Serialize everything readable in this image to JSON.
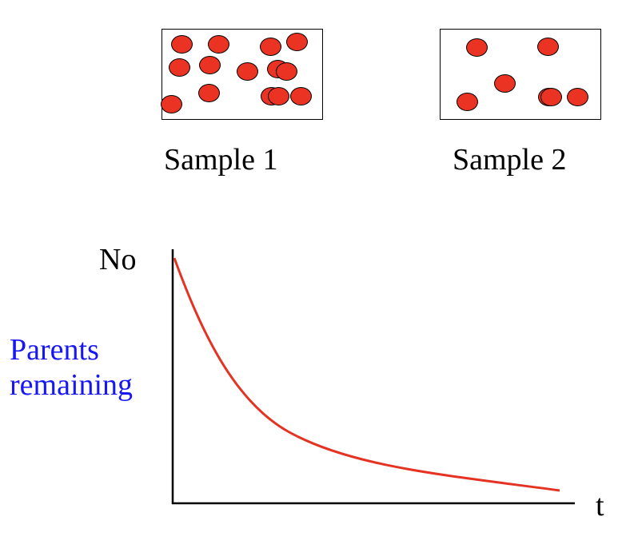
{
  "colors": {
    "particle": "#ea3323",
    "curve": "#e53323",
    "ylabel": "#1717f5",
    "axis": "#000000"
  },
  "samples": [
    {
      "name": "sample-1",
      "caption": "Sample 1",
      "particle_count": 14
    },
    {
      "name": "sample-2",
      "caption": "Sample 2",
      "particle_count": 7
    }
  ],
  "graph": {
    "y_axis_top_label": "No",
    "y_axis_label_line1": "Parents",
    "y_axis_label_line2": "remaining",
    "x_axis_label": "t",
    "curve": "decay"
  }
}
